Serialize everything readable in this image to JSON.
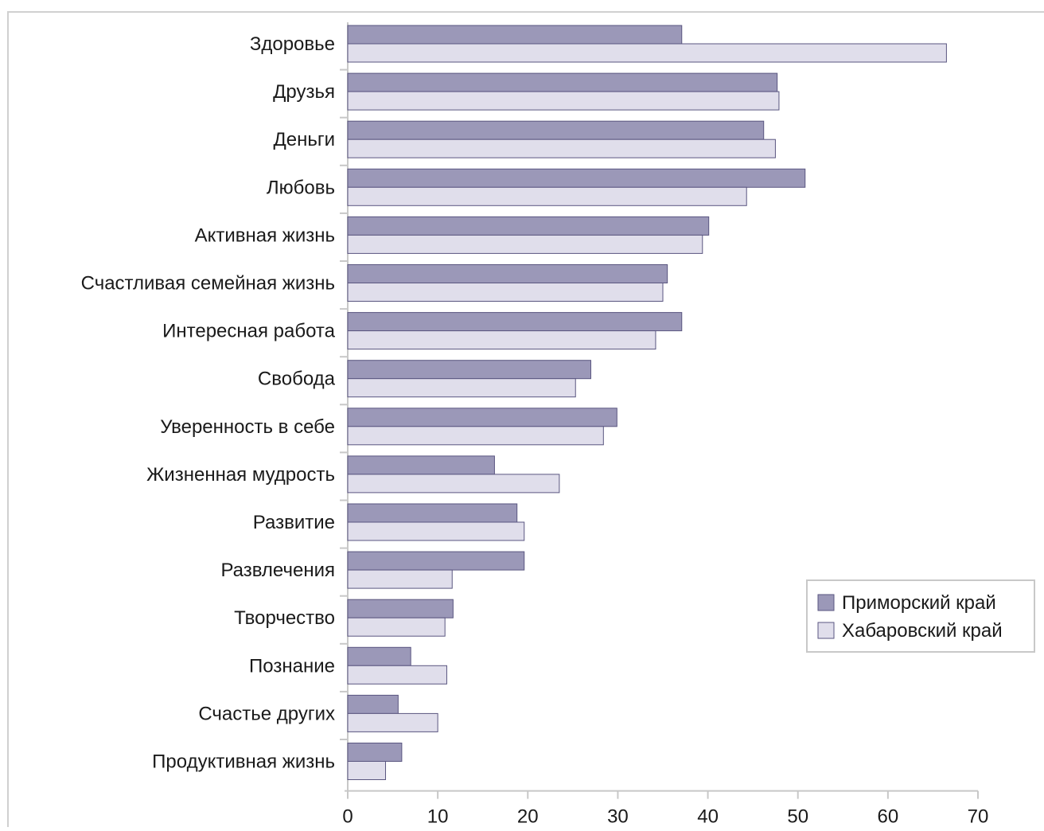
{
  "chart_data": {
    "type": "bar",
    "orientation": "horizontal",
    "categories": [
      "Здоровье",
      "Друзья",
      "Деньги",
      "Любовь",
      "Активная жизнь",
      "Счастливая семейная жизнь",
      "Интересная работа",
      "Свобода",
      "Уверенность в себе",
      "Жизненная мудрость",
      "Развитие",
      "Развлечения",
      "Творчество",
      "Познание",
      "Счастье других",
      "Продуктивная жизнь"
    ],
    "series": [
      {
        "name": "Приморский край",
        "color": "#9b98b8",
        "values": [
          37.1,
          47.7,
          46.2,
          50.8,
          40.1,
          35.5,
          37.1,
          27.0,
          29.9,
          16.3,
          18.8,
          19.6,
          11.7,
          7.0,
          5.6,
          6.0
        ]
      },
      {
        "name": "Хабаровский край",
        "color": "#e0deeb",
        "values": [
          66.5,
          47.9,
          47.5,
          44.3,
          39.4,
          35.0,
          34.2,
          25.3,
          28.4,
          23.5,
          19.6,
          11.6,
          10.8,
          11.0,
          10.0,
          4.2
        ]
      }
    ],
    "xlim": [
      0,
      70
    ],
    "xticks": [
      "0",
      "10",
      "20",
      "30",
      "40",
      "50",
      "60",
      "70"
    ],
    "legend_position": "bottom-right",
    "bar_outline_color": "#5a5680",
    "frame_color": "#d0d0d0"
  }
}
